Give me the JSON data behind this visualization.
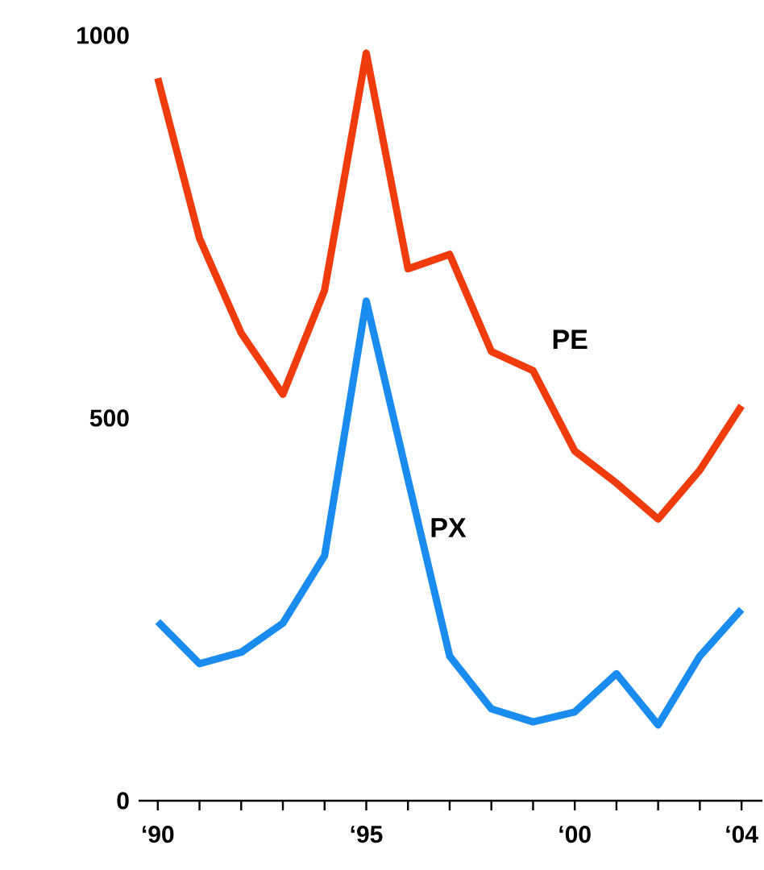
{
  "chart_data": {
    "type": "line",
    "categories": [
      "‘90",
      null,
      null,
      null,
      null,
      "‘95",
      null,
      null,
      null,
      null,
      "‘00",
      null,
      null,
      null,
      "‘04"
    ],
    "series": [
      {
        "name": "PE",
        "color": "#f03c0c",
        "values": [
          944,
          735,
          611,
          531,
          667,
          977,
          695,
          714,
          587,
          562,
          457,
          415,
          368,
          432,
          516
        ]
      },
      {
        "name": "PX",
        "color": "#1a8cf0",
        "values": [
          234,
          179,
          194,
          232,
          320,
          653,
          420,
          189,
          120,
          103,
          116,
          166,
          99,
          189,
          250
        ]
      }
    ],
    "ylim": [
      0,
      1000
    ],
    "yticks": [
      0,
      500,
      1000
    ],
    "grid": false,
    "legend": false,
    "marker": "none",
    "line_style": "solid"
  }
}
